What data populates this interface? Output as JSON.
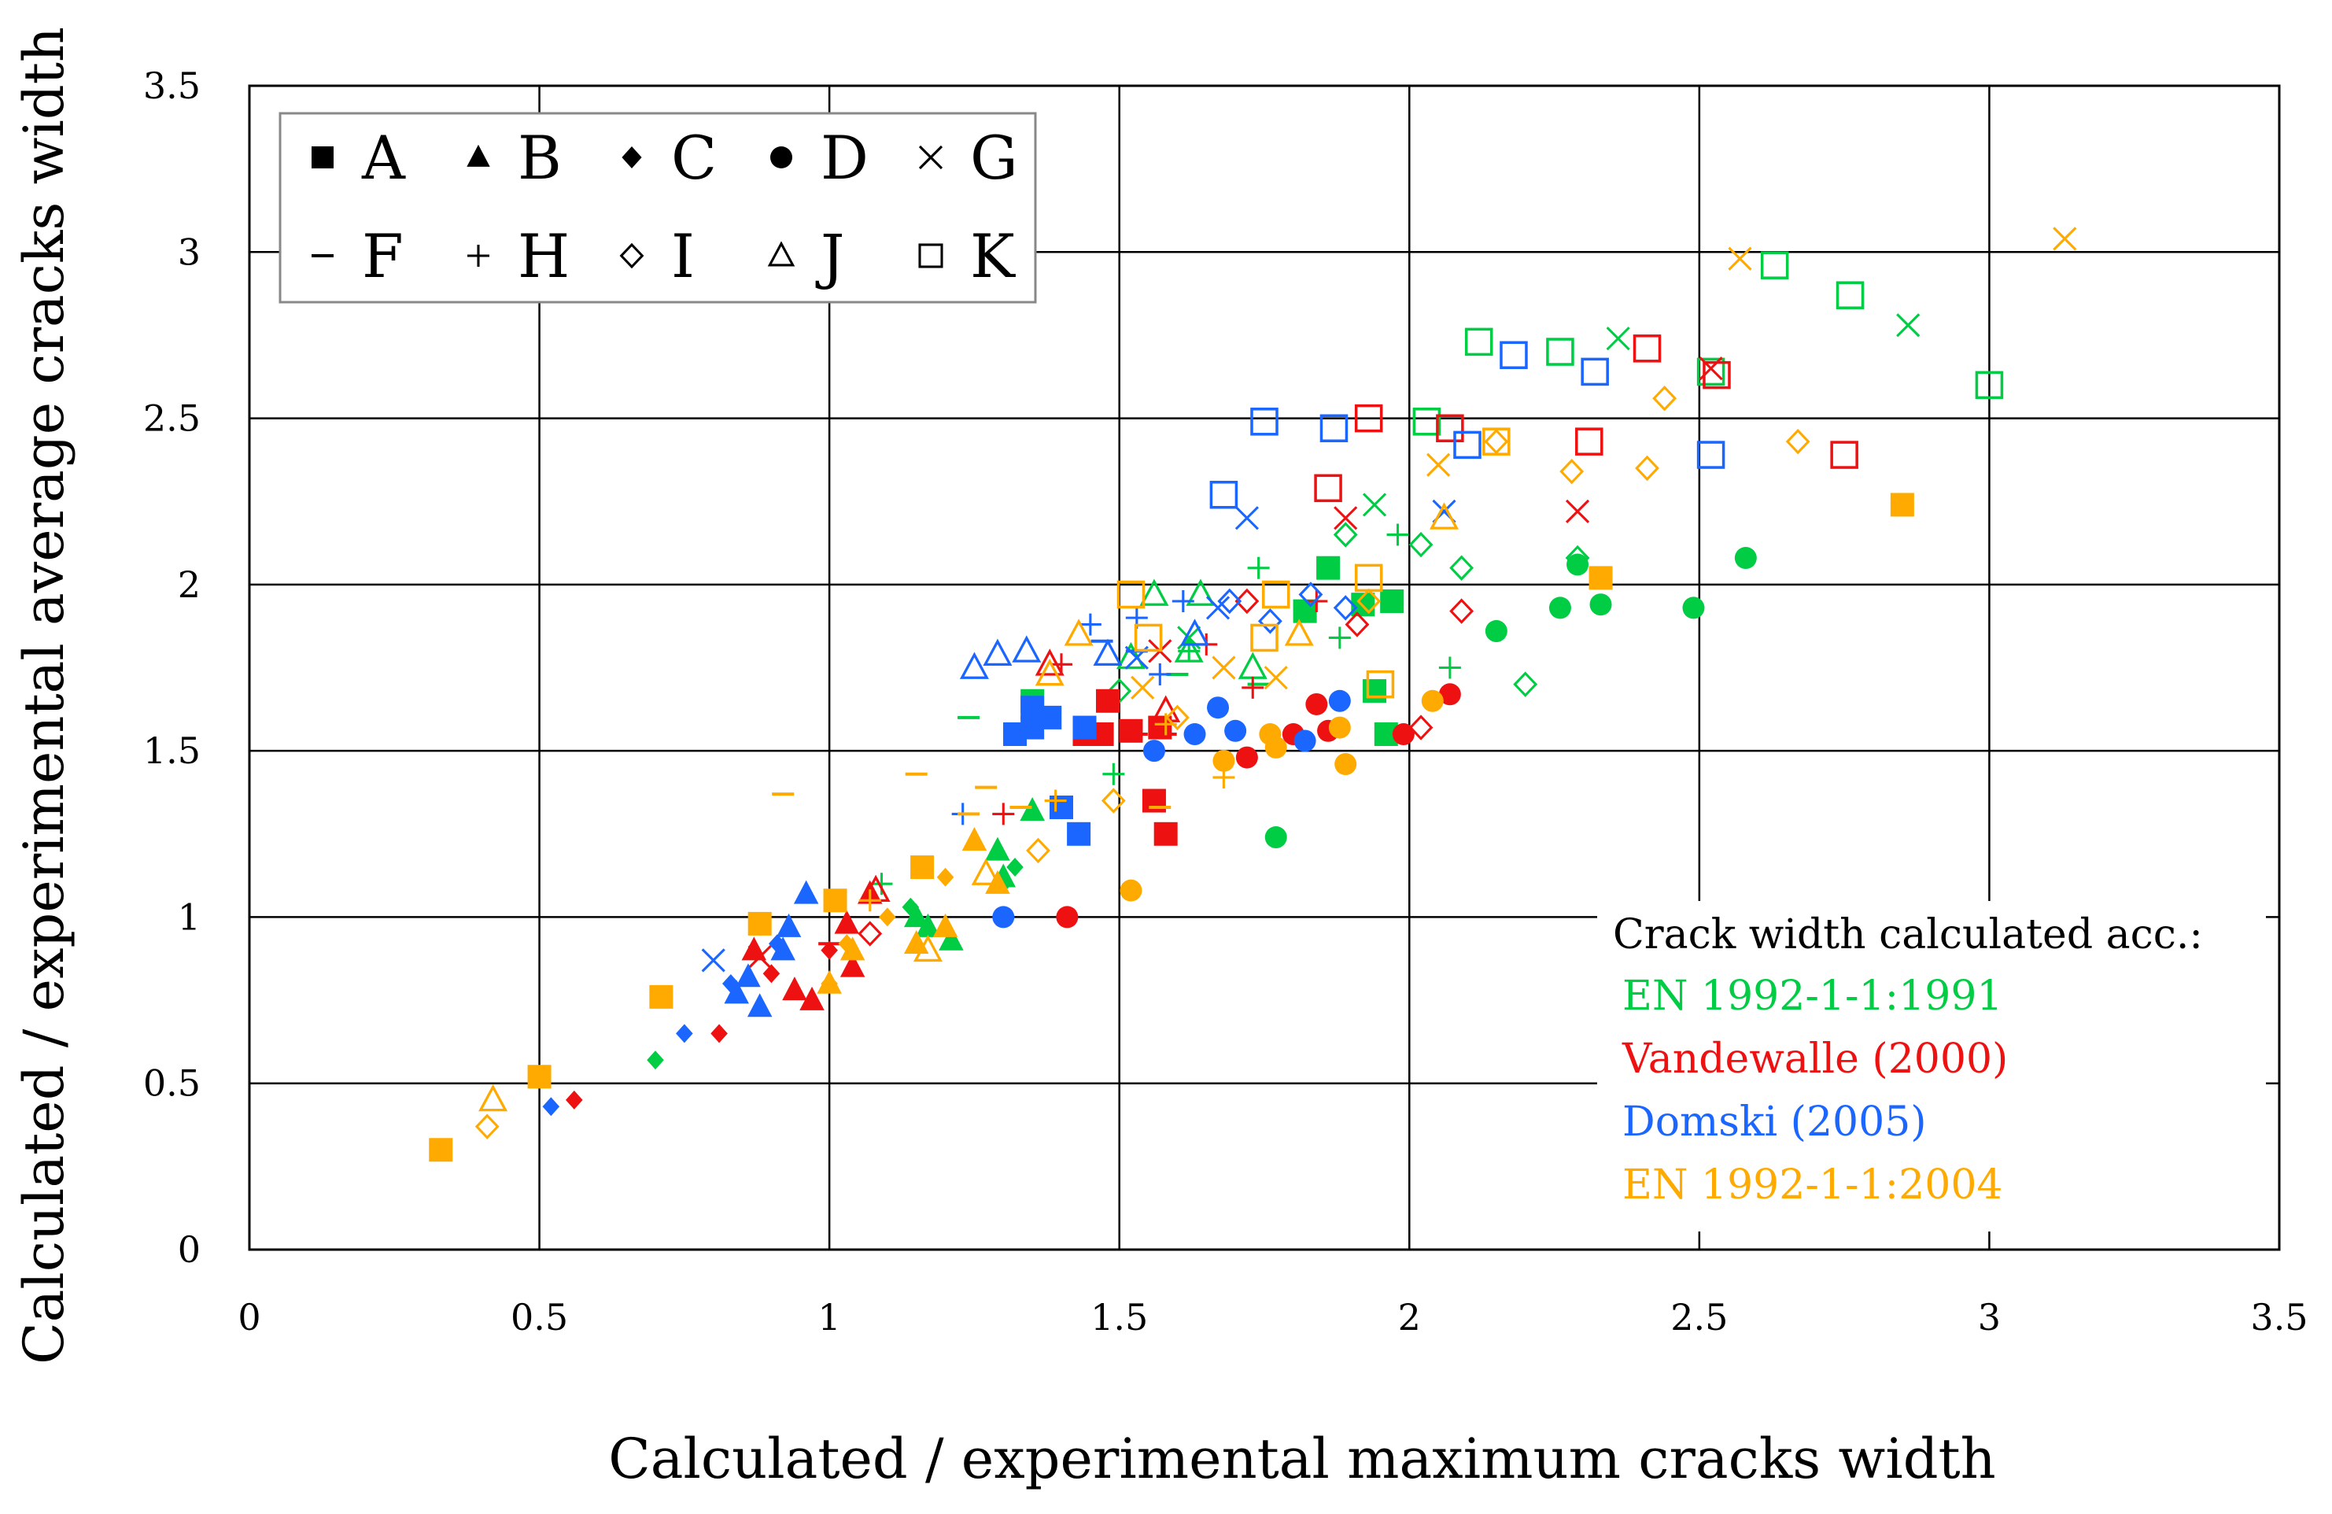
{
  "chart_data": {
    "type": "scatter",
    "xlabel": "Calculated / experimental maximum cracks width",
    "ylabel": "Calculated / experimental average cracks width",
    "xlim": [
      0,
      3.5
    ],
    "ylim": [
      0,
      3.5
    ],
    "x_ticks": [
      "0",
      "0.5",
      "1",
      "1.5",
      "2",
      "2.5",
      "3",
      "3.5"
    ],
    "y_ticks": [
      "0",
      "0.5",
      "1",
      "1.5",
      "2",
      "2.5",
      "3",
      "3.5"
    ],
    "grid": true,
    "legend_position": "top-left",
    "markers": [
      {
        "letter": "A",
        "symbol": "filled-square"
      },
      {
        "letter": "B",
        "symbol": "filled-triangle"
      },
      {
        "letter": "C",
        "symbol": "filled-diamond"
      },
      {
        "letter": "D",
        "symbol": "filled-circle"
      },
      {
        "letter": "G",
        "symbol": "x-mark"
      },
      {
        "letter": "F",
        "symbol": "dash"
      },
      {
        "letter": "H",
        "symbol": "plus"
      },
      {
        "letter": "I",
        "symbol": "open-diamond"
      },
      {
        "letter": "J",
        "symbol": "open-triangle"
      },
      {
        "letter": "K",
        "symbol": "open-square"
      }
    ],
    "annotation": {
      "title": "Crack width calculated acc.:",
      "items": [
        {
          "label": "EN 1992-1-1:1991",
          "color": "#00cc44"
        },
        {
          "label": "Vandewalle (2000)",
          "color": "#ee1111"
        },
        {
          "label": "Domski (2005)",
          "color": "#1a66ff"
        },
        {
          "label": "EN 1992-1-1:2004",
          "color": "#ffaa00"
        }
      ]
    },
    "colors": {
      "EN 1992-1-1:1991": "#00cc44",
      "Vandewalle (2000)": "#ee1111",
      "Domski (2005)": "#1a66ff",
      "EN 1992-1-1:2004": "#ffaa00"
    },
    "series": [
      {
        "name": "EN 1992-1-1:1991",
        "color": "#00cc44",
        "points": [
          [
            "A",
            1.35,
            1.65
          ],
          [
            "A",
            1.86,
            2.05
          ],
          [
            "A",
            1.94,
            1.68
          ],
          [
            "A",
            1.97,
            1.95
          ],
          [
            "A",
            1.92,
            1.94
          ],
          [
            "A",
            1.96,
            1.55
          ],
          [
            "A",
            1.82,
            1.92
          ],
          [
            "B",
            1.15,
            1.0
          ],
          [
            "B",
            1.21,
            0.93
          ],
          [
            "B",
            1.29,
            1.2
          ],
          [
            "B",
            1.3,
            1.12
          ],
          [
            "B",
            1.35,
            1.32
          ],
          [
            "B",
            1.17,
            0.97
          ],
          [
            "C",
            0.7,
            0.57
          ],
          [
            "C",
            1.14,
            1.03
          ],
          [
            "C",
            1.3,
            1.1
          ],
          [
            "C",
            1.32,
            1.15
          ],
          [
            "D",
            1.77,
            1.24
          ],
          [
            "D",
            2.15,
            1.86
          ],
          [
            "D",
            2.26,
            1.93
          ],
          [
            "D",
            2.29,
            2.06
          ],
          [
            "D",
            2.33,
            1.94
          ],
          [
            "D",
            2.49,
            1.93
          ],
          [
            "D",
            2.58,
            2.08
          ],
          [
            "G",
            2.36,
            2.74
          ],
          [
            "G",
            1.94,
            2.24
          ],
          [
            "G",
            2.86,
            2.78
          ],
          [
            "G",
            1.62,
            1.84
          ],
          [
            "F",
            1.24,
            1.6
          ],
          [
            "F",
            1.6,
            1.73
          ],
          [
            "F",
            1.74,
            1.7
          ],
          [
            "H",
            1.09,
            1.1
          ],
          [
            "H",
            1.49,
            1.43
          ],
          [
            "H",
            1.74,
            2.05
          ],
          [
            "H",
            1.98,
            2.15
          ],
          [
            "H",
            2.07,
            1.75
          ],
          [
            "H",
            1.88,
            1.84
          ],
          [
            "H",
            1.62,
            1.8
          ],
          [
            "I",
            2.02,
            2.12
          ],
          [
            "I",
            2.09,
            2.05
          ],
          [
            "I",
            2.2,
            1.7
          ],
          [
            "I",
            2.29,
            2.08
          ],
          [
            "I",
            1.89,
            2.15
          ],
          [
            "I",
            1.5,
            1.68
          ],
          [
            "J",
            1.56,
            1.97
          ],
          [
            "J",
            1.64,
            1.97
          ],
          [
            "J",
            1.73,
            1.75
          ],
          [
            "J",
            1.62,
            1.8
          ],
          [
            "J",
            1.52,
            1.78
          ],
          [
            "K",
            2.12,
            2.73
          ],
          [
            "K",
            2.26,
            2.7
          ],
          [
            "K",
            2.52,
            2.64
          ],
          [
            "K",
            2.63,
            2.96
          ],
          [
            "K",
            2.76,
            2.87
          ],
          [
            "K",
            3.0,
            2.6
          ],
          [
            "K",
            2.03,
            2.49
          ]
        ]
      },
      {
        "name": "Vandewalle (2000)",
        "color": "#ee1111",
        "points": [
          [
            "A",
            1.48,
            1.65
          ],
          [
            "A",
            1.47,
            1.55
          ],
          [
            "A",
            1.52,
            1.56
          ],
          [
            "A",
            1.56,
            1.35
          ],
          [
            "A",
            1.57,
            1.57
          ],
          [
            "A",
            1.58,
            1.25
          ],
          [
            "A",
            1.44,
            1.55
          ],
          [
            "B",
            0.87,
            0.9
          ],
          [
            "B",
            0.97,
            0.75
          ],
          [
            "B",
            1.03,
            0.98
          ],
          [
            "B",
            1.07,
            1.07
          ],
          [
            "B",
            0.94,
            0.78
          ],
          [
            "B",
            1.04,
            0.85
          ],
          [
            "C",
            0.56,
            0.45
          ],
          [
            "C",
            0.81,
            0.65
          ],
          [
            "C",
            0.9,
            0.83
          ],
          [
            "C",
            1.0,
            0.9
          ],
          [
            "D",
            1.41,
            1.0
          ],
          [
            "D",
            1.72,
            1.48
          ],
          [
            "D",
            1.8,
            1.55
          ],
          [
            "D",
            1.84,
            1.64
          ],
          [
            "D",
            1.99,
            1.55
          ],
          [
            "D",
            2.07,
            1.67
          ],
          [
            "D",
            1.86,
            1.56
          ],
          [
            "G",
            2.29,
            2.22
          ],
          [
            "G",
            1.57,
            1.8
          ],
          [
            "G",
            1.89,
            2.2
          ],
          [
            "G",
            2.52,
            2.65
          ],
          [
            "G",
            0.88,
            0.88
          ],
          [
            "F",
            1.0,
            0.92
          ],
          [
            "F",
            1.53,
            1.55
          ],
          [
            "F",
            1.58,
            1.55
          ],
          [
            "H",
            1.3,
            1.31
          ],
          [
            "H",
            1.4,
            1.76
          ],
          [
            "H",
            1.65,
            1.82
          ],
          [
            "H",
            1.84,
            1.95
          ],
          [
            "H",
            1.73,
            1.69
          ],
          [
            "I",
            1.72,
            1.95
          ],
          [
            "I",
            1.91,
            1.88
          ],
          [
            "I",
            2.09,
            1.92
          ],
          [
            "I",
            2.02,
            1.57
          ],
          [
            "I",
            1.07,
            0.95
          ],
          [
            "J",
            1.38,
            1.76
          ],
          [
            "J",
            1.08,
            1.08
          ],
          [
            "J",
            1.58,
            1.62
          ],
          [
            "K",
            1.86,
            2.29
          ],
          [
            "K",
            1.93,
            2.5
          ],
          [
            "K",
            2.07,
            2.47
          ],
          [
            "K",
            2.31,
            2.43
          ],
          [
            "K",
            2.41,
            2.71
          ],
          [
            "K",
            2.53,
            2.63
          ],
          [
            "K",
            2.75,
            2.39
          ]
        ]
      },
      {
        "name": "Domski (2005)",
        "color": "#1a66ff",
        "points": [
          [
            "A",
            1.32,
            1.55
          ],
          [
            "A",
            1.35,
            1.57
          ],
          [
            "A",
            1.38,
            1.6
          ],
          [
            "A",
            1.43,
            1.25
          ],
          [
            "A",
            1.44,
            1.57
          ],
          [
            "A",
            1.4,
            1.33
          ],
          [
            "A",
            1.35,
            1.63
          ],
          [
            "B",
            0.84,
            0.77
          ],
          [
            "B",
            0.88,
            0.73
          ],
          [
            "B",
            0.93,
            0.97
          ],
          [
            "B",
            0.96,
            1.07
          ],
          [
            "B",
            0.92,
            0.9
          ],
          [
            "B",
            0.86,
            0.82
          ],
          [
            "C",
            0.52,
            0.43
          ],
          [
            "C",
            0.75,
            0.65
          ],
          [
            "C",
            0.83,
            0.8
          ],
          [
            "C",
            0.91,
            0.92
          ],
          [
            "D",
            1.3,
            1.0
          ],
          [
            "D",
            1.56,
            1.5
          ],
          [
            "D",
            1.63,
            1.55
          ],
          [
            "D",
            1.67,
            1.63
          ],
          [
            "D",
            1.7,
            1.56
          ],
          [
            "D",
            1.82,
            1.53
          ],
          [
            "D",
            1.88,
            1.65
          ],
          [
            "G",
            0.8,
            0.87
          ],
          [
            "G",
            1.72,
            2.2
          ],
          [
            "G",
            2.06,
            2.22
          ],
          [
            "G",
            1.53,
            1.78
          ],
          [
            "G",
            1.67,
            1.93
          ],
          [
            "F",
            1.4,
            1.35
          ],
          [
            "F",
            1.47,
            1.83
          ],
          [
            "F",
            1.53,
            1.8
          ],
          [
            "H",
            1.23,
            1.31
          ],
          [
            "H",
            1.45,
            1.88
          ],
          [
            "H",
            1.53,
            1.9
          ],
          [
            "H",
            1.61,
            1.95
          ],
          [
            "H",
            1.57,
            1.73
          ],
          [
            "I",
            1.69,
            1.95
          ],
          [
            "I",
            1.76,
            1.89
          ],
          [
            "I",
            1.83,
            1.97
          ],
          [
            "I",
            1.89,
            1.93
          ],
          [
            "J",
            1.25,
            1.75
          ],
          [
            "J",
            1.29,
            1.79
          ],
          [
            "J",
            1.34,
            1.8
          ],
          [
            "J",
            1.63,
            1.85
          ],
          [
            "J",
            1.48,
            1.79
          ],
          [
            "K",
            1.68,
            2.27
          ],
          [
            "K",
            1.75,
            2.49
          ],
          [
            "K",
            1.87,
            2.47
          ],
          [
            "K",
            2.1,
            2.42
          ],
          [
            "K",
            2.18,
            2.69
          ],
          [
            "K",
            2.32,
            2.64
          ],
          [
            "K",
            2.52,
            2.39
          ]
        ]
      },
      {
        "name": "EN 1992-1-1:2004",
        "color": "#ffaa00",
        "points": [
          [
            "A",
            0.33,
            0.3
          ],
          [
            "A",
            0.5,
            0.52
          ],
          [
            "A",
            0.71,
            0.76
          ],
          [
            "A",
            0.88,
            0.98
          ],
          [
            "A",
            1.01,
            1.05
          ],
          [
            "A",
            1.16,
            1.15
          ],
          [
            "A",
            2.33,
            2.02
          ],
          [
            "A",
            2.85,
            2.24
          ],
          [
            "B",
            1.0,
            0.8
          ],
          [
            "B",
            1.04,
            0.9
          ],
          [
            "B",
            1.15,
            0.92
          ],
          [
            "B",
            1.2,
            0.97
          ],
          [
            "B",
            1.25,
            1.23
          ],
          [
            "B",
            1.29,
            1.1
          ],
          [
            "C",
            1.0,
            0.8
          ],
          [
            "C",
            1.03,
            0.92
          ],
          [
            "C",
            1.1,
            1.0
          ],
          [
            "C",
            1.2,
            1.12
          ],
          [
            "D",
            1.52,
            1.08
          ],
          [
            "D",
            1.68,
            1.47
          ],
          [
            "D",
            1.76,
            1.55
          ],
          [
            "D",
            1.77,
            1.51
          ],
          [
            "D",
            1.88,
            1.57
          ],
          [
            "D",
            1.89,
            1.46
          ],
          [
            "D",
            2.04,
            1.65
          ],
          [
            "G",
            2.57,
            2.98
          ],
          [
            "G",
            3.13,
            3.04
          ],
          [
            "G",
            2.05,
            2.36
          ],
          [
            "G",
            1.54,
            1.69
          ],
          [
            "G",
            1.77,
            1.72
          ],
          [
            "G",
            1.68,
            1.75
          ],
          [
            "F",
            0.92,
            1.37
          ],
          [
            "F",
            1.15,
            1.43
          ],
          [
            "F",
            1.27,
            1.39
          ],
          [
            "F",
            1.33,
            1.33
          ],
          [
            "F",
            1.57,
            1.33
          ],
          [
            "F",
            1.24,
            1.31
          ],
          [
            "H",
            1.07,
            1.05
          ],
          [
            "H",
            1.39,
            1.35
          ],
          [
            "H",
            1.58,
            1.58
          ],
          [
            "H",
            1.68,
            1.42
          ],
          [
            "I",
            0.41,
            0.37
          ],
          [
            "I",
            1.36,
            1.2
          ],
          [
            "I",
            1.49,
            1.35
          ],
          [
            "I",
            1.6,
            1.6
          ],
          [
            "I",
            2.15,
            2.43
          ],
          [
            "I",
            2.28,
            2.34
          ],
          [
            "I",
            2.41,
            2.35
          ],
          [
            "I",
            2.44,
            2.56
          ],
          [
            "I",
            2.67,
            2.43
          ],
          [
            "I",
            1.93,
            1.95
          ],
          [
            "J",
            0.42,
            0.45
          ],
          [
            "J",
            1.17,
            0.9
          ],
          [
            "J",
            1.27,
            1.13
          ],
          [
            "J",
            1.38,
            1.73
          ],
          [
            "J",
            1.43,
            1.85
          ],
          [
            "J",
            1.81,
            1.85
          ],
          [
            "J",
            2.06,
            2.2
          ],
          [
            "K",
            1.52,
            1.97
          ],
          [
            "K",
            1.55,
            1.84
          ],
          [
            "K",
            1.75,
            1.84
          ],
          [
            "K",
            1.77,
            1.97
          ],
          [
            "K",
            1.93,
            2.02
          ],
          [
            "K",
            1.95,
            1.7
          ],
          [
            "K",
            2.15,
            2.43
          ]
        ]
      }
    ]
  }
}
